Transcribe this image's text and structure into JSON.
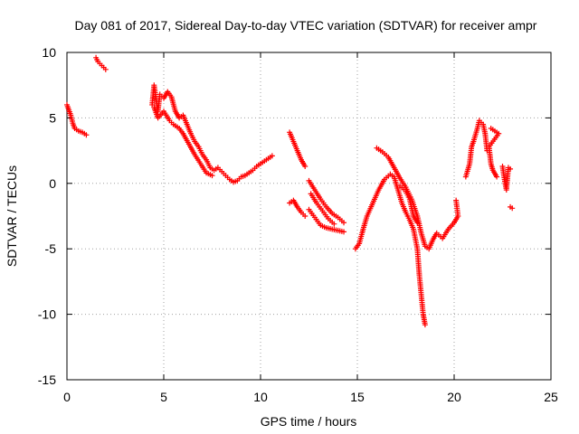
{
  "chart_data": {
    "type": "scatter",
    "title": "Day 081 of 2017, Sidereal Day-to-day VTEC variation (SDTVAR) for receiver ampr",
    "xlabel": "GPS time / hours",
    "ylabel": "SDTVAR / TECUs",
    "xlim": [
      0,
      25
    ],
    "ylim": [
      -15,
      10
    ],
    "xticks": [
      0,
      5,
      10,
      15,
      20,
      25
    ],
    "yticks": [
      -15,
      -10,
      -5,
      0,
      5,
      10
    ],
    "grid": true,
    "marker": "+",
    "color": "#ff0000",
    "series": [
      {
        "name": "seg1",
        "points": [
          [
            0.0,
            6.0
          ],
          [
            0.1,
            5.6
          ],
          [
            0.2,
            5.2
          ],
          [
            0.3,
            4.6
          ],
          [
            0.4,
            4.2
          ],
          [
            0.6,
            4.0
          ],
          [
            0.8,
            3.9
          ],
          [
            1.0,
            3.7
          ]
        ]
      },
      {
        "name": "seg2",
        "points": [
          [
            1.5,
            9.6
          ],
          [
            1.6,
            9.3
          ],
          [
            1.8,
            9.0
          ],
          [
            2.0,
            8.7
          ]
        ]
      },
      {
        "name": "seg3",
        "points": [
          [
            4.4,
            6.0
          ],
          [
            4.5,
            7.5
          ],
          [
            4.6,
            6.5
          ],
          [
            4.7,
            5.5
          ],
          [
            4.8,
            6.8
          ],
          [
            5.0,
            6.5
          ],
          [
            5.2,
            7.0
          ],
          [
            5.4,
            6.6
          ],
          [
            5.6,
            5.5
          ],
          [
            5.8,
            5.0
          ],
          [
            6.0,
            5.2
          ],
          [
            6.2,
            4.5
          ],
          [
            6.4,
            3.8
          ],
          [
            6.6,
            3.2
          ],
          [
            6.8,
            2.8
          ],
          [
            7.0,
            2.2
          ],
          [
            7.2,
            1.8
          ],
          [
            7.4,
            1.2
          ],
          [
            7.6,
            1.0
          ],
          [
            7.8,
            1.2
          ],
          [
            8.0,
            0.9
          ],
          [
            8.2,
            0.6
          ],
          [
            8.4,
            0.3
          ],
          [
            8.6,
            0.1
          ],
          [
            8.8,
            0.2
          ],
          [
            9.0,
            0.5
          ],
          [
            9.2,
            0.6
          ],
          [
            9.4,
            0.8
          ],
          [
            9.6,
            1.0
          ],
          [
            9.8,
            1.3
          ],
          [
            10.0,
            1.5
          ],
          [
            10.2,
            1.7
          ],
          [
            10.4,
            1.9
          ],
          [
            10.6,
            2.1
          ]
        ]
      },
      {
        "name": "seg3b",
        "points": [
          [
            4.5,
            5.8
          ],
          [
            4.7,
            5.0
          ],
          [
            5.0,
            5.5
          ],
          [
            5.3,
            4.8
          ],
          [
            5.5,
            4.5
          ],
          [
            5.8,
            4.2
          ],
          [
            6.0,
            3.8
          ],
          [
            6.3,
            3.0
          ],
          [
            6.6,
            2.2
          ],
          [
            6.9,
            1.5
          ],
          [
            7.2,
            0.8
          ],
          [
            7.5,
            0.6
          ]
        ]
      },
      {
        "name": "seg4",
        "points": [
          [
            11.5,
            3.9
          ],
          [
            11.7,
            3.2
          ],
          [
            11.9,
            2.5
          ],
          [
            12.1,
            1.8
          ],
          [
            12.3,
            1.3
          ]
        ]
      },
      {
        "name": "seg5",
        "points": [
          [
            11.5,
            -1.5
          ],
          [
            11.7,
            -1.3
          ],
          [
            11.9,
            -1.8
          ],
          [
            12.1,
            -2.2
          ],
          [
            12.3,
            -2.5
          ]
        ]
      },
      {
        "name": "seg6",
        "points": [
          [
            12.5,
            0.2
          ],
          [
            12.8,
            -0.5
          ],
          [
            13.1,
            -1.2
          ],
          [
            13.4,
            -1.8
          ],
          [
            13.7,
            -2.3
          ],
          [
            14.0,
            -2.6
          ],
          [
            14.3,
            -3.0
          ]
        ]
      },
      {
        "name": "seg7",
        "points": [
          [
            12.5,
            -2.0
          ],
          [
            12.8,
            -2.6
          ],
          [
            13.1,
            -3.2
          ],
          [
            13.4,
            -3.4
          ],
          [
            13.7,
            -3.5
          ],
          [
            14.0,
            -3.6
          ],
          [
            14.3,
            -3.7
          ]
        ]
      },
      {
        "name": "seg7b",
        "points": [
          [
            12.6,
            -0.8
          ],
          [
            12.9,
            -1.5
          ],
          [
            13.2,
            -2.1
          ],
          [
            13.5,
            -2.7
          ],
          [
            13.8,
            -3.1
          ]
        ]
      },
      {
        "name": "seg8",
        "points": [
          [
            14.9,
            -5.0
          ],
          [
            15.1,
            -4.6
          ],
          [
            15.3,
            -3.5
          ],
          [
            15.5,
            -2.5
          ],
          [
            15.8,
            -1.5
          ],
          [
            16.1,
            -0.5
          ],
          [
            16.4,
            0.3
          ],
          [
            16.7,
            0.7
          ],
          [
            16.9,
            0.5
          ],
          [
            17.1,
            -0.5
          ],
          [
            17.3,
            -1.5
          ],
          [
            17.5,
            -2.2
          ],
          [
            17.7,
            -2.8
          ],
          [
            17.9,
            -3.5
          ],
          [
            18.1,
            -5.0
          ],
          [
            18.2,
            -7.0
          ],
          [
            18.3,
            -8.5
          ],
          [
            18.4,
            -10.0
          ],
          [
            18.5,
            -10.8
          ]
        ]
      },
      {
        "name": "seg9",
        "points": [
          [
            16.0,
            2.7
          ],
          [
            16.3,
            2.4
          ],
          [
            16.6,
            2.0
          ],
          [
            16.9,
            1.2
          ],
          [
            17.2,
            0.4
          ],
          [
            17.5,
            -0.3
          ],
          [
            17.8,
            -1.2
          ],
          [
            18.1,
            -2.5
          ],
          [
            18.3,
            -3.8
          ],
          [
            18.5,
            -4.8
          ],
          [
            18.7,
            -5.0
          ],
          [
            18.9,
            -4.3
          ],
          [
            19.1,
            -3.8
          ],
          [
            19.4,
            -4.2
          ],
          [
            19.7,
            -3.5
          ],
          [
            20.0,
            -3.0
          ],
          [
            20.2,
            -2.5
          ],
          [
            20.1,
            -1.3
          ]
        ]
      },
      {
        "name": "seg9b",
        "points": [
          [
            17.2,
            -0.2
          ],
          [
            17.5,
            -0.6
          ],
          [
            17.7,
            -1.2
          ],
          [
            17.9,
            -2.5
          ],
          [
            18.1,
            -3.0
          ]
        ]
      },
      {
        "name": "seg10",
        "points": [
          [
            20.6,
            0.5
          ],
          [
            20.8,
            1.5
          ],
          [
            20.9,
            2.8
          ],
          [
            21.0,
            3.2
          ],
          [
            21.2,
            4.2
          ],
          [
            21.3,
            4.8
          ],
          [
            21.5,
            4.5
          ],
          [
            21.6,
            3.8
          ],
          [
            21.7,
            2.5
          ]
        ]
      },
      {
        "name": "seg11",
        "points": [
          [
            21.9,
            4.2
          ],
          [
            22.1,
            4.0
          ],
          [
            22.3,
            3.8
          ],
          [
            21.8,
            2.8
          ],
          [
            21.9,
            1.5
          ],
          [
            22.0,
            1.0
          ],
          [
            22.2,
            0.5
          ]
        ]
      },
      {
        "name": "seg12",
        "points": [
          [
            22.5,
            1.3
          ],
          [
            22.6,
            0.3
          ],
          [
            22.7,
            -0.5
          ],
          [
            22.8,
            1.2
          ],
          [
            22.9,
            1.1
          ]
        ]
      },
      {
        "name": "seg13",
        "points": [
          [
            22.9,
            -1.8
          ],
          [
            23.0,
            -1.9
          ]
        ]
      }
    ]
  }
}
